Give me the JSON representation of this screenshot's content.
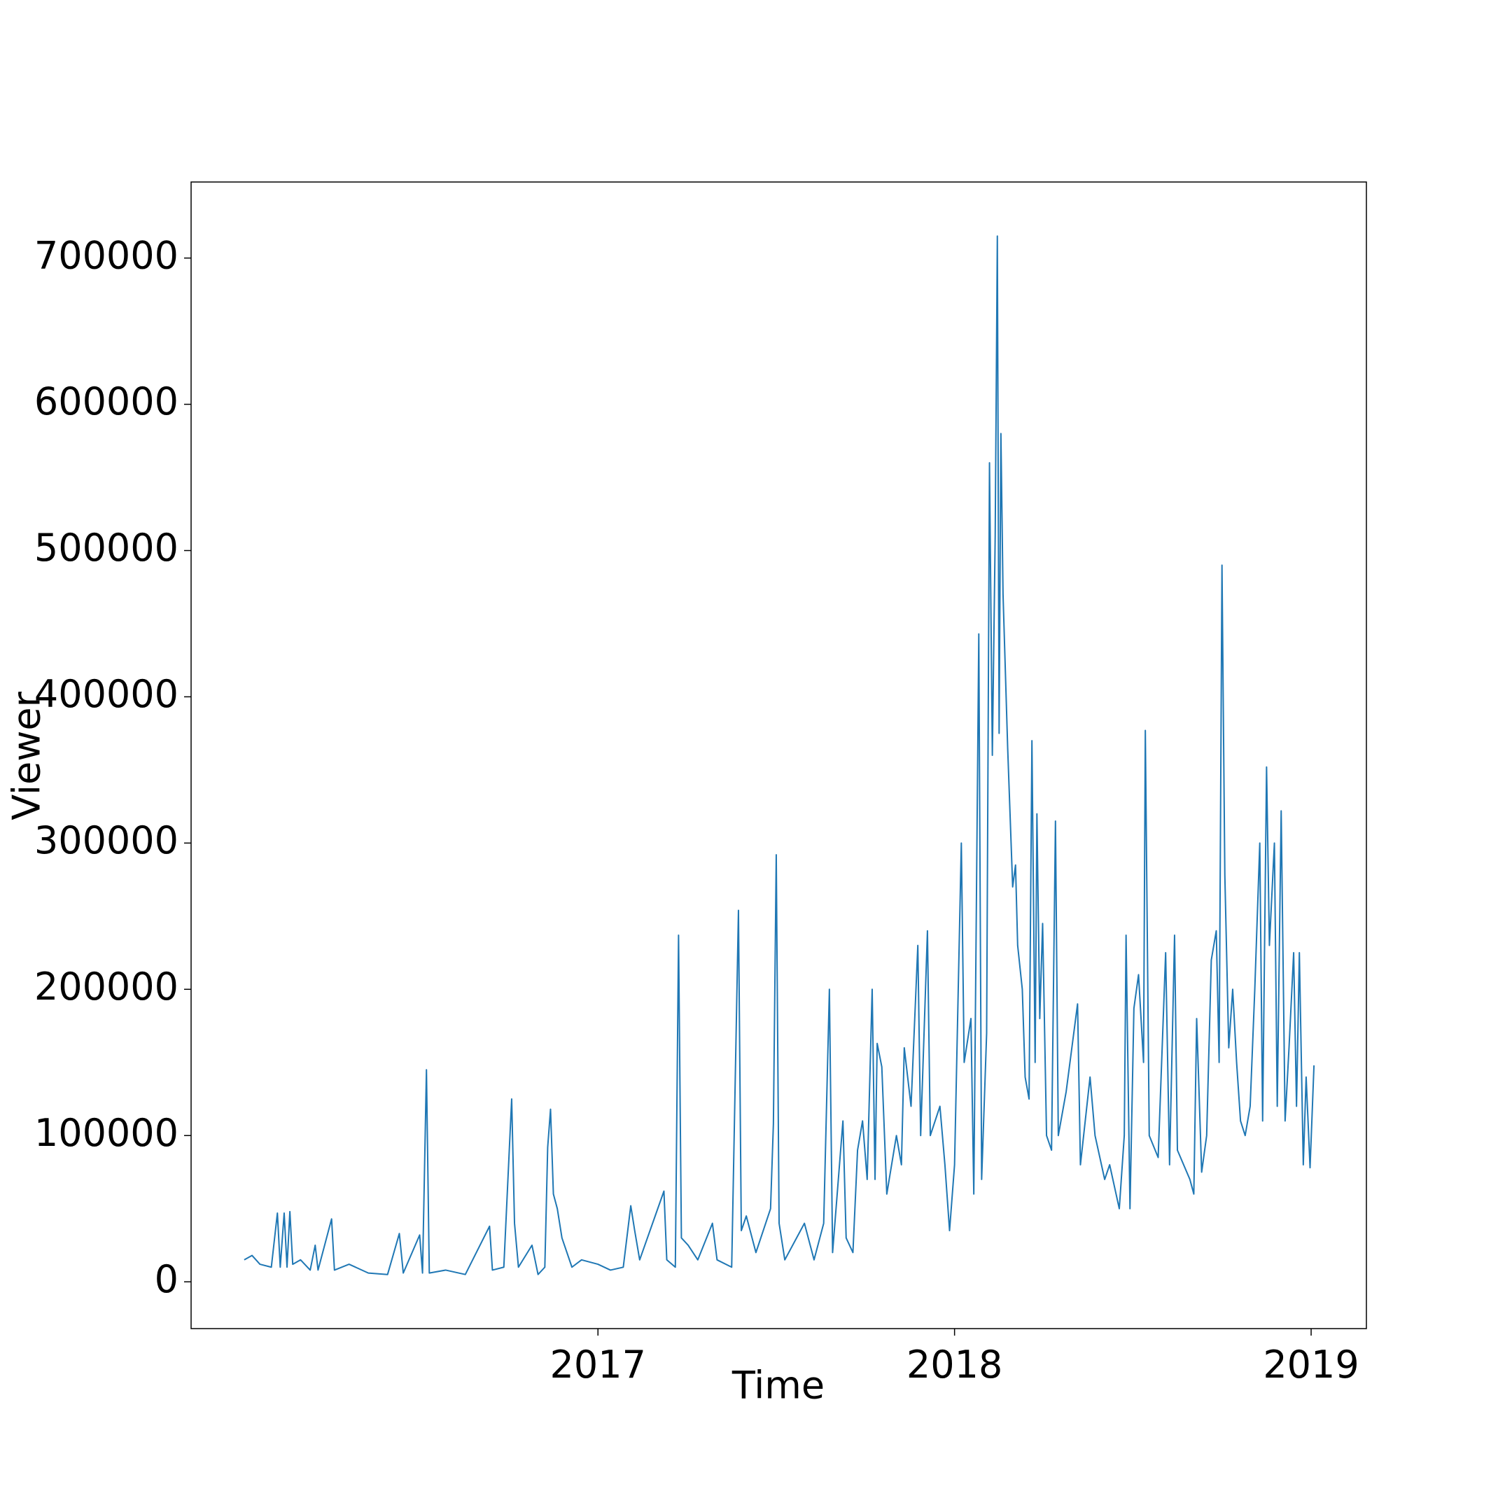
{
  "chart_data": {
    "type": "line",
    "xlabel": "Time",
    "ylabel": "Viewer",
    "xlim": [
      2015.859,
      2019.155
    ],
    "xticks": [
      2017,
      2018,
      2019
    ],
    "ylim": [
      -32000,
      752000
    ],
    "yticks": [
      0,
      100000,
      200000,
      300000,
      400000,
      500000,
      600000,
      700000
    ],
    "x": [
      2016.008,
      2016.03,
      2016.052,
      2016.084,
      2016.101,
      2016.109,
      2016.12,
      2016.128,
      2016.136,
      2016.144,
      2016.166,
      2016.193,
      2016.207,
      2016.215,
      2016.253,
      2016.261,
      2016.302,
      2016.356,
      2016.41,
      2016.443,
      2016.454,
      2016.5,
      2016.508,
      2016.519,
      2016.527,
      2016.573,
      2016.628,
      2016.696,
      2016.704,
      2016.736,
      2016.758,
      2016.766,
      2016.777,
      2016.815,
      2016.832,
      2016.851,
      2016.859,
      2016.867,
      2016.875,
      2016.886,
      2016.899,
      2016.927,
      2016.954,
      2017.0,
      2017.035,
      2017.071,
      2017.092,
      2017.103,
      2017.117,
      2017.185,
      2017.193,
      2017.217,
      2017.226,
      2017.234,
      2017.253,
      2017.28,
      2017.321,
      2017.334,
      2017.375,
      2017.394,
      2017.402,
      2017.416,
      2017.443,
      2017.484,
      2017.492,
      2017.5,
      2017.508,
      2017.524,
      2017.579,
      2017.606,
      2017.633,
      2017.649,
      2017.658,
      2017.687,
      2017.696,
      2017.715,
      2017.728,
      2017.742,
      2017.755,
      2017.769,
      2017.777,
      2017.783,
      2017.796,
      2017.81,
      2017.837,
      2017.851,
      2017.859,
      2017.878,
      2017.897,
      2017.905,
      2017.924,
      2017.932,
      2017.959,
      2017.973,
      2017.986,
      2018.0,
      2018.019,
      2018.027,
      2018.046,
      2018.054,
      2018.068,
      2018.076,
      2018.09,
      2018.098,
      2018.106,
      2018.114,
      2018.12,
      2018.125,
      2018.13,
      2018.136,
      2018.149,
      2018.163,
      2018.171,
      2018.177,
      2018.19,
      2018.198,
      2018.209,
      2018.217,
      2018.226,
      2018.231,
      2018.239,
      2018.247,
      2018.258,
      2018.272,
      2018.283,
      2018.291,
      2018.313,
      2018.345,
      2018.353,
      2018.38,
      2018.394,
      2018.421,
      2018.435,
      2018.462,
      2018.476,
      2018.481,
      2018.492,
      2018.503,
      2018.516,
      2018.53,
      2018.535,
      2018.546,
      2018.571,
      2018.592,
      2018.603,
      2018.617,
      2018.625,
      2018.66,
      2018.671,
      2018.679,
      2018.693,
      2018.707,
      2018.72,
      2018.734,
      2018.742,
      2018.75,
      2018.758,
      2018.769,
      2018.78,
      2018.791,
      2018.802,
      2018.815,
      2018.829,
      2018.842,
      2018.856,
      2018.864,
      2018.875,
      2018.883,
      2018.897,
      2018.905,
      2018.916,
      2018.927,
      2018.938,
      2018.951,
      2018.959,
      2018.967,
      2018.978,
      2018.986,
      2018.997,
      2019.008
    ],
    "series": [
      {
        "name": "Viewer",
        "color": "#1f77b4",
        "values": [
          15000,
          18000,
          12000,
          10000,
          47000,
          10000,
          47000,
          10000,
          48000,
          12000,
          15000,
          8000,
          25000,
          8000,
          43000,
          8000,
          12000,
          6000,
          5000,
          33000,
          6000,
          32000,
          6000,
          145000,
          6000,
          8000,
          5000,
          38000,
          8000,
          10000,
          125000,
          40000,
          10000,
          25000,
          5000,
          10000,
          92000,
          118000,
          60000,
          50000,
          30000,
          10000,
          15000,
          12000,
          8000,
          10000,
          52000,
          35000,
          15000,
          62000,
          15000,
          10000,
          237000,
          30000,
          25000,
          15000,
          40000,
          15000,
          10000,
          254000,
          35000,
          45000,
          20000,
          50000,
          108000,
          292000,
          40000,
          15000,
          40000,
          15000,
          40000,
          200000,
          20000,
          110000,
          30000,
          20000,
          90000,
          110000,
          70000,
          200000,
          70000,
          163000,
          147000,
          60000,
          100000,
          80000,
          160000,
          120000,
          230000,
          100000,
          240000,
          100000,
          120000,
          80000,
          35000,
          80000,
          300000,
          150000,
          180000,
          60000,
          443000,
          70000,
          170000,
          560000,
          360000,
          510000,
          715000,
          375000,
          580000,
          470000,
          365000,
          270000,
          285000,
          230000,
          200000,
          140000,
          125000,
          370000,
          150000,
          320000,
          180000,
          245000,
          100000,
          90000,
          315000,
          100000,
          130000,
          190000,
          80000,
          140000,
          100000,
          70000,
          80000,
          50000,
          100000,
          237000,
          50000,
          187000,
          210000,
          150000,
          377000,
          100000,
          85000,
          225000,
          80000,
          237000,
          90000,
          70000,
          60000,
          180000,
          75000,
          100000,
          220000,
          240000,
          150000,
          490000,
          278000,
          160000,
          200000,
          150000,
          110000,
          100000,
          120000,
          200000,
          300000,
          110000,
          352000,
          230000,
          300000,
          120000,
          322000,
          110000,
          160000,
          225000,
          120000,
          225000,
          80000,
          140000,
          78000,
          148000
        ]
      }
    ]
  }
}
